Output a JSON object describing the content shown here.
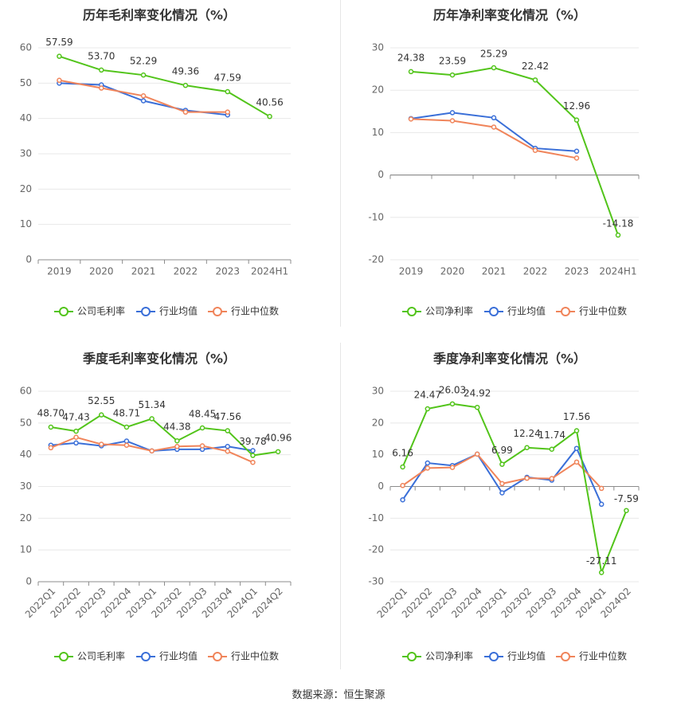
{
  "source_label": "数据来源：恒生聚源",
  "colors": {
    "company": "#52c41a",
    "industry_avg": "#3a6fd8",
    "industry_median": "#f0845a"
  },
  "chart_data": [
    {
      "type": "line",
      "title": "历年毛利率变化情况（%）",
      "categories": [
        "2019",
        "2020",
        "2021",
        "2022",
        "2023",
        "2024H1"
      ],
      "ylim": [
        0,
        60
      ],
      "yticks": [
        0,
        10,
        20,
        30,
        40,
        50,
        60
      ],
      "legend_position": "bottom",
      "grid": true,
      "series": [
        {
          "name": "公司毛利率",
          "values": [
            57.59,
            53.7,
            52.29,
            49.36,
            47.59,
            40.56
          ],
          "labels": [
            "57.59",
            "53.70",
            "52.29",
            "49.36",
            "47.59",
            "40.56"
          ]
        },
        {
          "name": "行业均值",
          "values": [
            50.0,
            49.5,
            45.0,
            42.3,
            41.0,
            null
          ]
        },
        {
          "name": "行业中位数",
          "values": [
            50.8,
            48.6,
            46.4,
            41.8,
            41.8,
            null
          ]
        }
      ]
    },
    {
      "type": "line",
      "title": "历年净利率变化情况（%）",
      "categories": [
        "2019",
        "2020",
        "2021",
        "2022",
        "2023",
        "2024H1"
      ],
      "ylim": [
        -20,
        30
      ],
      "yticks": [
        -20,
        -10,
        0,
        10,
        20,
        30
      ],
      "legend_position": "bottom",
      "grid": true,
      "series": [
        {
          "name": "公司净利率",
          "values": [
            24.38,
            23.59,
            25.29,
            22.42,
            12.96,
            -14.18
          ],
          "labels": [
            "24.38",
            "23.59",
            "25.29",
            "22.42",
            "12.96",
            "-14.18"
          ]
        },
        {
          "name": "行业均值",
          "values": [
            13.3,
            14.7,
            13.5,
            6.3,
            5.6,
            null
          ]
        },
        {
          "name": "行业中位数",
          "values": [
            13.2,
            12.8,
            11.3,
            5.8,
            4.0,
            null
          ]
        }
      ]
    },
    {
      "type": "line",
      "title": "季度毛利率变化情况（%）",
      "categories": [
        "2022Q1",
        "2022Q2",
        "2022Q3",
        "2022Q4",
        "2023Q1",
        "2023Q2",
        "2023Q3",
        "2023Q4",
        "2024Q1",
        "2024Q2"
      ],
      "ylim": [
        0,
        60
      ],
      "yticks": [
        0,
        10,
        20,
        30,
        40,
        50,
        60
      ],
      "legend_position": "bottom",
      "grid": true,
      "series": [
        {
          "name": "公司毛利率",
          "values": [
            48.7,
            47.43,
            52.55,
            48.71,
            51.34,
            44.38,
            48.45,
            47.56,
            39.78,
            40.96
          ],
          "labels": [
            "48.70",
            "47.43",
            "52.55",
            "48.71",
            "51.34",
            "44.38",
            "48.45",
            "47.56",
            "39.78",
            "40.96"
          ]
        },
        {
          "name": "行业均值",
          "values": [
            43.0,
            43.7,
            42.8,
            44.3,
            41.2,
            41.7,
            41.7,
            42.6,
            41.3,
            null
          ]
        },
        {
          "name": "行业中位数",
          "values": [
            42.2,
            45.5,
            43.3,
            43.0,
            41.2,
            42.6,
            42.8,
            41.1,
            37.6,
            null
          ]
        }
      ]
    },
    {
      "type": "line",
      "title": "季度净利率变化情况（%）",
      "categories": [
        "2022Q1",
        "2022Q2",
        "2022Q3",
        "2022Q4",
        "2023Q1",
        "2023Q2",
        "2023Q3",
        "2023Q4",
        "2024Q1",
        "2024Q2"
      ],
      "ylim": [
        -30,
        30
      ],
      "yticks": [
        -30,
        -20,
        -10,
        0,
        10,
        20,
        30
      ],
      "legend_position": "bottom",
      "grid": true,
      "series": [
        {
          "name": "公司净利率",
          "values": [
            6.16,
            24.47,
            26.03,
            24.92,
            6.99,
            12.24,
            11.74,
            17.56,
            -27.11,
            -7.59
          ],
          "labels": [
            "6.16",
            "24.47",
            "26.03",
            "24.92",
            "6.99",
            "12.24",
            "11.74",
            "17.56",
            "-27.11",
            "-7.59"
          ]
        },
        {
          "name": "行业均值",
          "values": [
            -4.2,
            7.4,
            6.6,
            10.2,
            -2.0,
            2.9,
            2.0,
            12.0,
            -5.6,
            null
          ]
        },
        {
          "name": "行业中位数",
          "values": [
            0.3,
            5.8,
            6.0,
            10.2,
            0.9,
            2.6,
            2.5,
            7.7,
            -0.6,
            null
          ]
        }
      ]
    }
  ]
}
